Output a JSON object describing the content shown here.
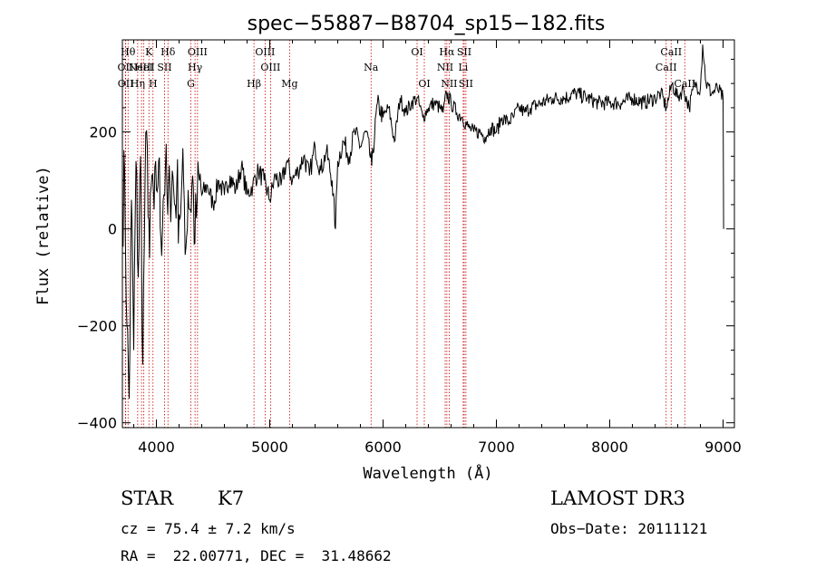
{
  "chart_data": {
    "type": "line",
    "title": "spec−55887−B8704_sp15−182.fits",
    "xlabel": "Wavelength (Å)",
    "ylabel": "Flux (relative)",
    "xlim": [
      3700,
      9100
    ],
    "ylim": [
      -410,
      390
    ],
    "xticks": [
      4000,
      5000,
      6000,
      7000,
      8000,
      9000
    ],
    "yticks": [
      -400,
      -200,
      0,
      200
    ],
    "ytick_labels": [
      "−400",
      "−200",
      "0",
      "200"
    ],
    "series": [
      {
        "name": "flux",
        "x": [
          3700,
          3720,
          3740,
          3760,
          3780,
          3800,
          3820,
          3840,
          3860,
          3880,
          3900,
          3920,
          3940,
          3960,
          3980,
          4000,
          4020,
          4040,
          4060,
          4080,
          4100,
          4120,
          4140,
          4160,
          4180,
          4200,
          4220,
          4240,
          4260,
          4280,
          4300,
          4320,
          4340,
          4360,
          4380,
          4400,
          4450,
          4500,
          4550,
          4600,
          4650,
          4700,
          4750,
          4800,
          4850,
          4900,
          4950,
          5000,
          5050,
          5100,
          5150,
          5200,
          5250,
          5300,
          5350,
          5400,
          5450,
          5500,
          5550,
          5580,
          5600,
          5650,
          5700,
          5750,
          5800,
          5850,
          5900,
          5950,
          6000,
          6050,
          6100,
          6150,
          6200,
          6250,
          6300,
          6350,
          6400,
          6450,
          6500,
          6530,
          6560,
          6600,
          6650,
          6700,
          6750,
          6800,
          6850,
          6900,
          6950,
          7000,
          7050,
          7100,
          7150,
          7200,
          7250,
          7300,
          7400,
          7500,
          7600,
          7700,
          7800,
          7900,
          8000,
          8100,
          8200,
          8300,
          8400,
          8450,
          8500,
          8550,
          8600,
          8650,
          8700,
          8750,
          8800,
          8820,
          8850,
          8900,
          8950,
          9000,
          9005
        ],
        "y": [
          20,
          120,
          -200,
          -350,
          60,
          -250,
          140,
          -100,
          150,
          -280,
          100,
          170,
          -60,
          110,
          40,
          80,
          140,
          -20,
          60,
          130,
          30,
          80,
          120,
          50,
          90,
          30,
          70,
          100,
          -40,
          80,
          40,
          110,
          -30,
          60,
          100,
          70,
          90,
          50,
          100,
          70,
          110,
          80,
          130,
          70,
          90,
          120,
          100,
          60,
          110,
          90,
          140,
          100,
          120,
          150,
          110,
          170,
          120,
          160,
          100,
          0,
          140,
          180,
          150,
          200,
          170,
          200,
          130,
          260,
          230,
          250,
          180,
          270,
          240,
          260,
          270,
          230,
          250,
          260,
          250,
          240,
          280,
          260,
          240,
          230,
          210,
          200,
          200,
          190,
          210,
          200,
          230,
          220,
          230,
          250,
          240,
          250,
          260,
          270,
          270,
          280,
          270,
          260,
          260,
          260,
          270,
          260,
          270,
          280,
          250,
          300,
          270,
          290,
          250,
          300,
          290,
          380,
          300,
          280,
          290,
          270,
          0
        ]
      }
    ],
    "lines": [
      {
        "wave": 3727,
        "label": "OII",
        "row": 2
      },
      {
        "wave": 3729,
        "label": "OII",
        "row": 3
      },
      {
        "wave": 3750,
        "label": "Hθ",
        "row": 1
      },
      {
        "wave": 3835,
        "label": "Hη",
        "row": 3
      },
      {
        "wave": 3869,
        "label": "NeIII",
        "row": 2
      },
      {
        "wave": 3889,
        "label": "HeI",
        "row": 2
      },
      {
        "wave": 3934,
        "label": "K",
        "row": 1
      },
      {
        "wave": 3970,
        "label": "H",
        "row": 3
      },
      {
        "wave": 4072,
        "label": "SII",
        "row": 2
      },
      {
        "wave": 4102,
        "label": "Hδ",
        "row": 1
      },
      {
        "wave": 4304,
        "label": "G",
        "row": 3
      },
      {
        "wave": 4341,
        "label": "Hγ",
        "row": 2
      },
      {
        "wave": 4363,
        "label": "OIII",
        "row": 1
      },
      {
        "wave": 4861,
        "label": "Hβ",
        "row": 3
      },
      {
        "wave": 4959,
        "label": "OIII",
        "row": 1
      },
      {
        "wave": 5007,
        "label": "OIII",
        "row": 2
      },
      {
        "wave": 5175,
        "label": "Mg",
        "row": 3
      },
      {
        "wave": 5894,
        "label": "Na",
        "row": 2
      },
      {
        "wave": 6300,
        "label": "OI",
        "row": 1
      },
      {
        "wave": 6364,
        "label": "OI",
        "row": 3
      },
      {
        "wave": 6548,
        "label": "NII",
        "row": 2
      },
      {
        "wave": 6563,
        "label": "Hα",
        "row": 1
      },
      {
        "wave": 6583,
        "label": "NII",
        "row": 3
      },
      {
        "wave": 6707,
        "label": "Li",
        "row": 2
      },
      {
        "wave": 6716,
        "label": "SII",
        "row": 1
      },
      {
        "wave": 6731,
        "label": "SII",
        "row": 3
      },
      {
        "wave": 8498,
        "label": "CaII",
        "row": 2
      },
      {
        "wave": 8542,
        "label": "CaII",
        "row": 1
      },
      {
        "wave": 8662,
        "label": "CaII",
        "row": 3
      }
    ],
    "colors": {
      "spectrum": "#000000",
      "line_marker": "#cc0000"
    }
  },
  "info": {
    "class_label": "STAR",
    "subclass": "K7",
    "cz": "cz = 75.4 ± 7.2 km/s",
    "coords": "RA =  22.00771, DEC =  31.48662",
    "survey": "LAMOST DR3",
    "obs_date": "Obs−Date: 20111121"
  }
}
